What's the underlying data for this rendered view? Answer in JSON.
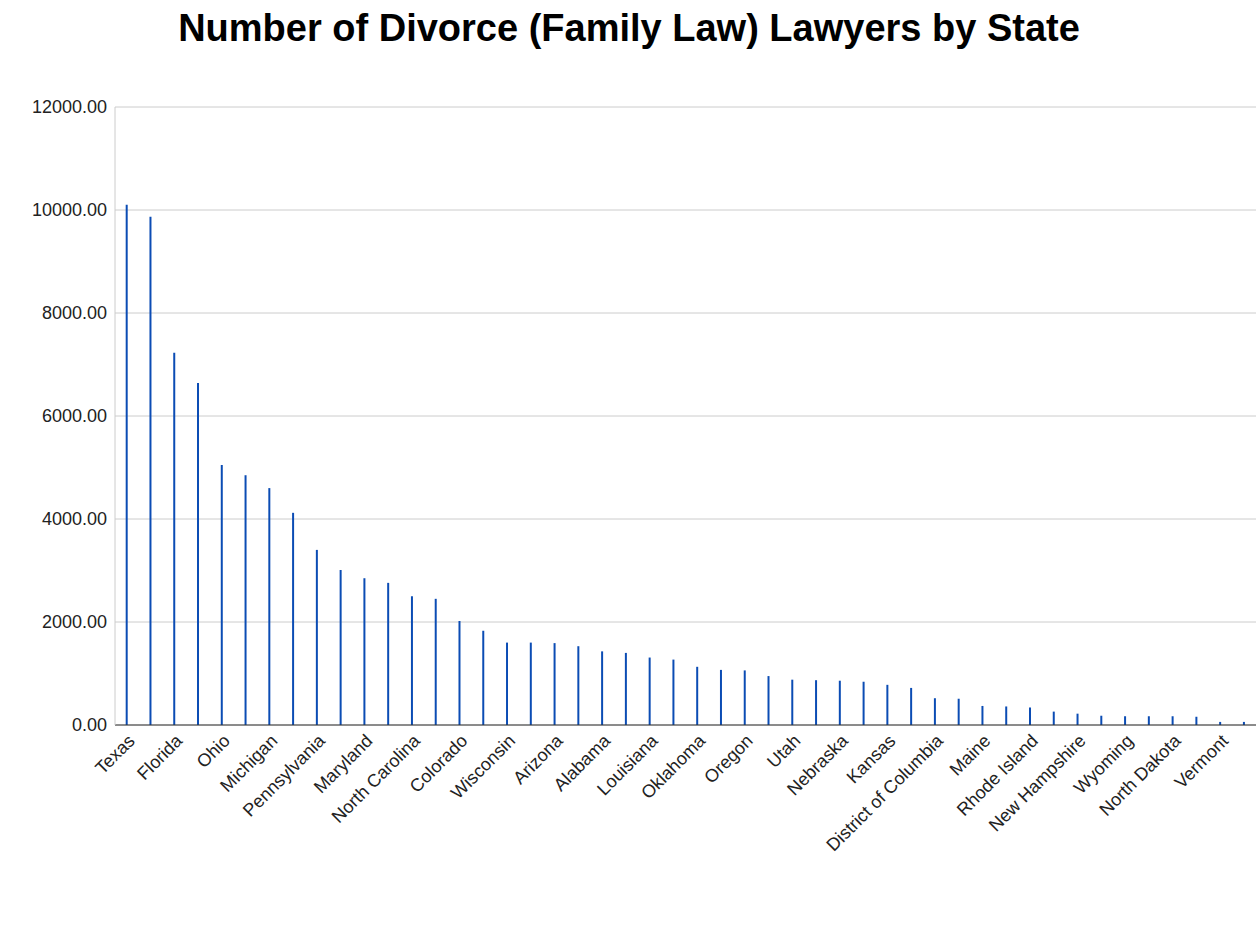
{
  "chart_data": {
    "type": "bar",
    "title": "Number of Divorce (Family Law) Lawyers by State",
    "categories": [
      "Texas",
      null,
      "Florida",
      null,
      "Ohio",
      null,
      "Michigan",
      null,
      "Pennsylvania",
      null,
      "Maryland",
      null,
      "North Carolina",
      null,
      "Colorado",
      null,
      "Wisconsin",
      null,
      "Arizona",
      null,
      "Alabama",
      null,
      "Louisiana",
      null,
      "Oklahoma",
      null,
      "Oregon",
      null,
      "Utah",
      null,
      "Nebraska",
      null,
      "Kansas",
      null,
      "District of Columbia",
      null,
      "Maine",
      null,
      "Rhode Island",
      null,
      "New Hampshire",
      null,
      "Wyoming",
      null,
      "North Dakota",
      null,
      "Vermont",
      null
    ],
    "values": [
      10100,
      9870,
      7230,
      6640,
      5050,
      4850,
      4600,
      4120,
      3400,
      3010,
      2850,
      2760,
      2500,
      2450,
      2020,
      1830,
      1600,
      1600,
      1590,
      1530,
      1430,
      1400,
      1310,
      1270,
      1130,
      1070,
      1060,
      950,
      880,
      870,
      860,
      840,
      780,
      720,
      520,
      510,
      370,
      360,
      340,
      260,
      220,
      180,
      170,
      170,
      170,
      160,
      60,
      60
    ],
    "color": "#0b4cb4",
    "ylim": [
      0,
      12000
    ],
    "yticks": [
      {
        "value": 0,
        "label": "0.00"
      },
      {
        "value": 2000,
        "label": "2000.00"
      },
      {
        "value": 4000,
        "label": "4000.00"
      },
      {
        "value": 6000,
        "label": "6000.00"
      },
      {
        "value": 8000,
        "label": "8000.00"
      },
      {
        "value": 10000,
        "label": "10000.00"
      },
      {
        "value": 12000,
        "label": "12000.00"
      }
    ],
    "grid": true
  }
}
